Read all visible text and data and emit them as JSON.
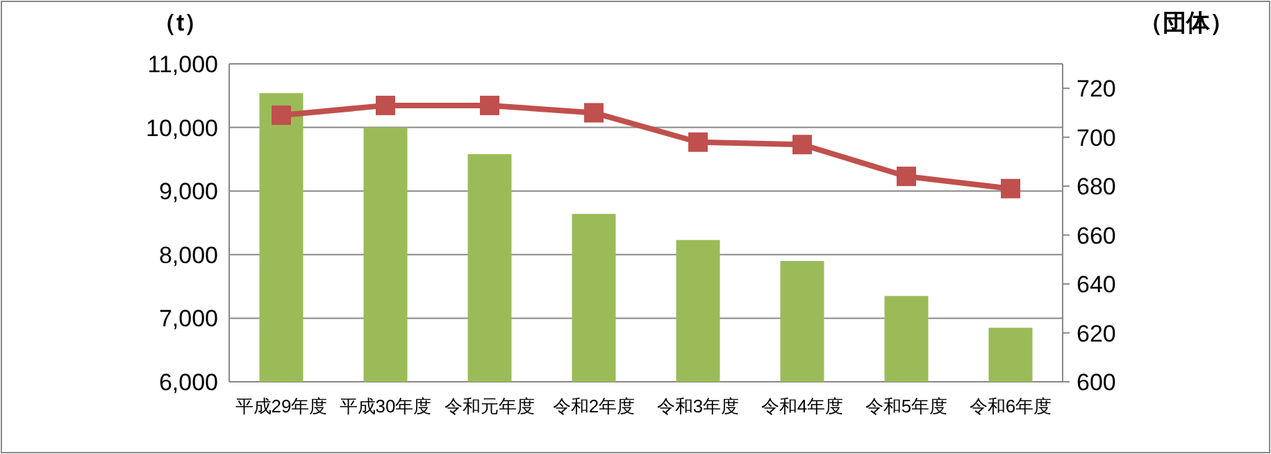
{
  "chart_data": {
    "type": "bar",
    "ylabel": "（t）",
    "y2label": "（団体）",
    "categories": [
      "平成29年度",
      "平成30年度",
      "令和元年度",
      "令和2年度",
      "令和3年度",
      "令和4年度",
      "令和5年度",
      "令和6年度"
    ],
    "series": [
      {
        "color": "#9bbb59",
        "values": [
          10540,
          10000,
          9580,
          8640,
          8230,
          7900,
          7350,
          6850
        ]
      },
      {
        "type": "line",
        "axis": "y2",
        "color": "#c0504d",
        "marker": "square",
        "values": [
          709,
          713,
          713,
          710,
          698,
          697,
          684,
          679
        ]
      }
    ],
    "ylim": [
      6000,
      11000
    ],
    "yticks": [
      {
        "value": 6000,
        "label": "6,000"
      },
      {
        "value": 7000,
        "label": "7,000"
      },
      {
        "value": 8000,
        "label": "8,000"
      },
      {
        "value": 9000,
        "label": "9,000"
      },
      {
        "value": 10000,
        "label": "10,000"
      },
      {
        "value": 11000,
        "label": "11,000"
      }
    ],
    "y2lim": [
      600,
      730
    ],
    "y2ticks": [
      600,
      620,
      640,
      660,
      680,
      700,
      720
    ],
    "grid": "y"
  }
}
